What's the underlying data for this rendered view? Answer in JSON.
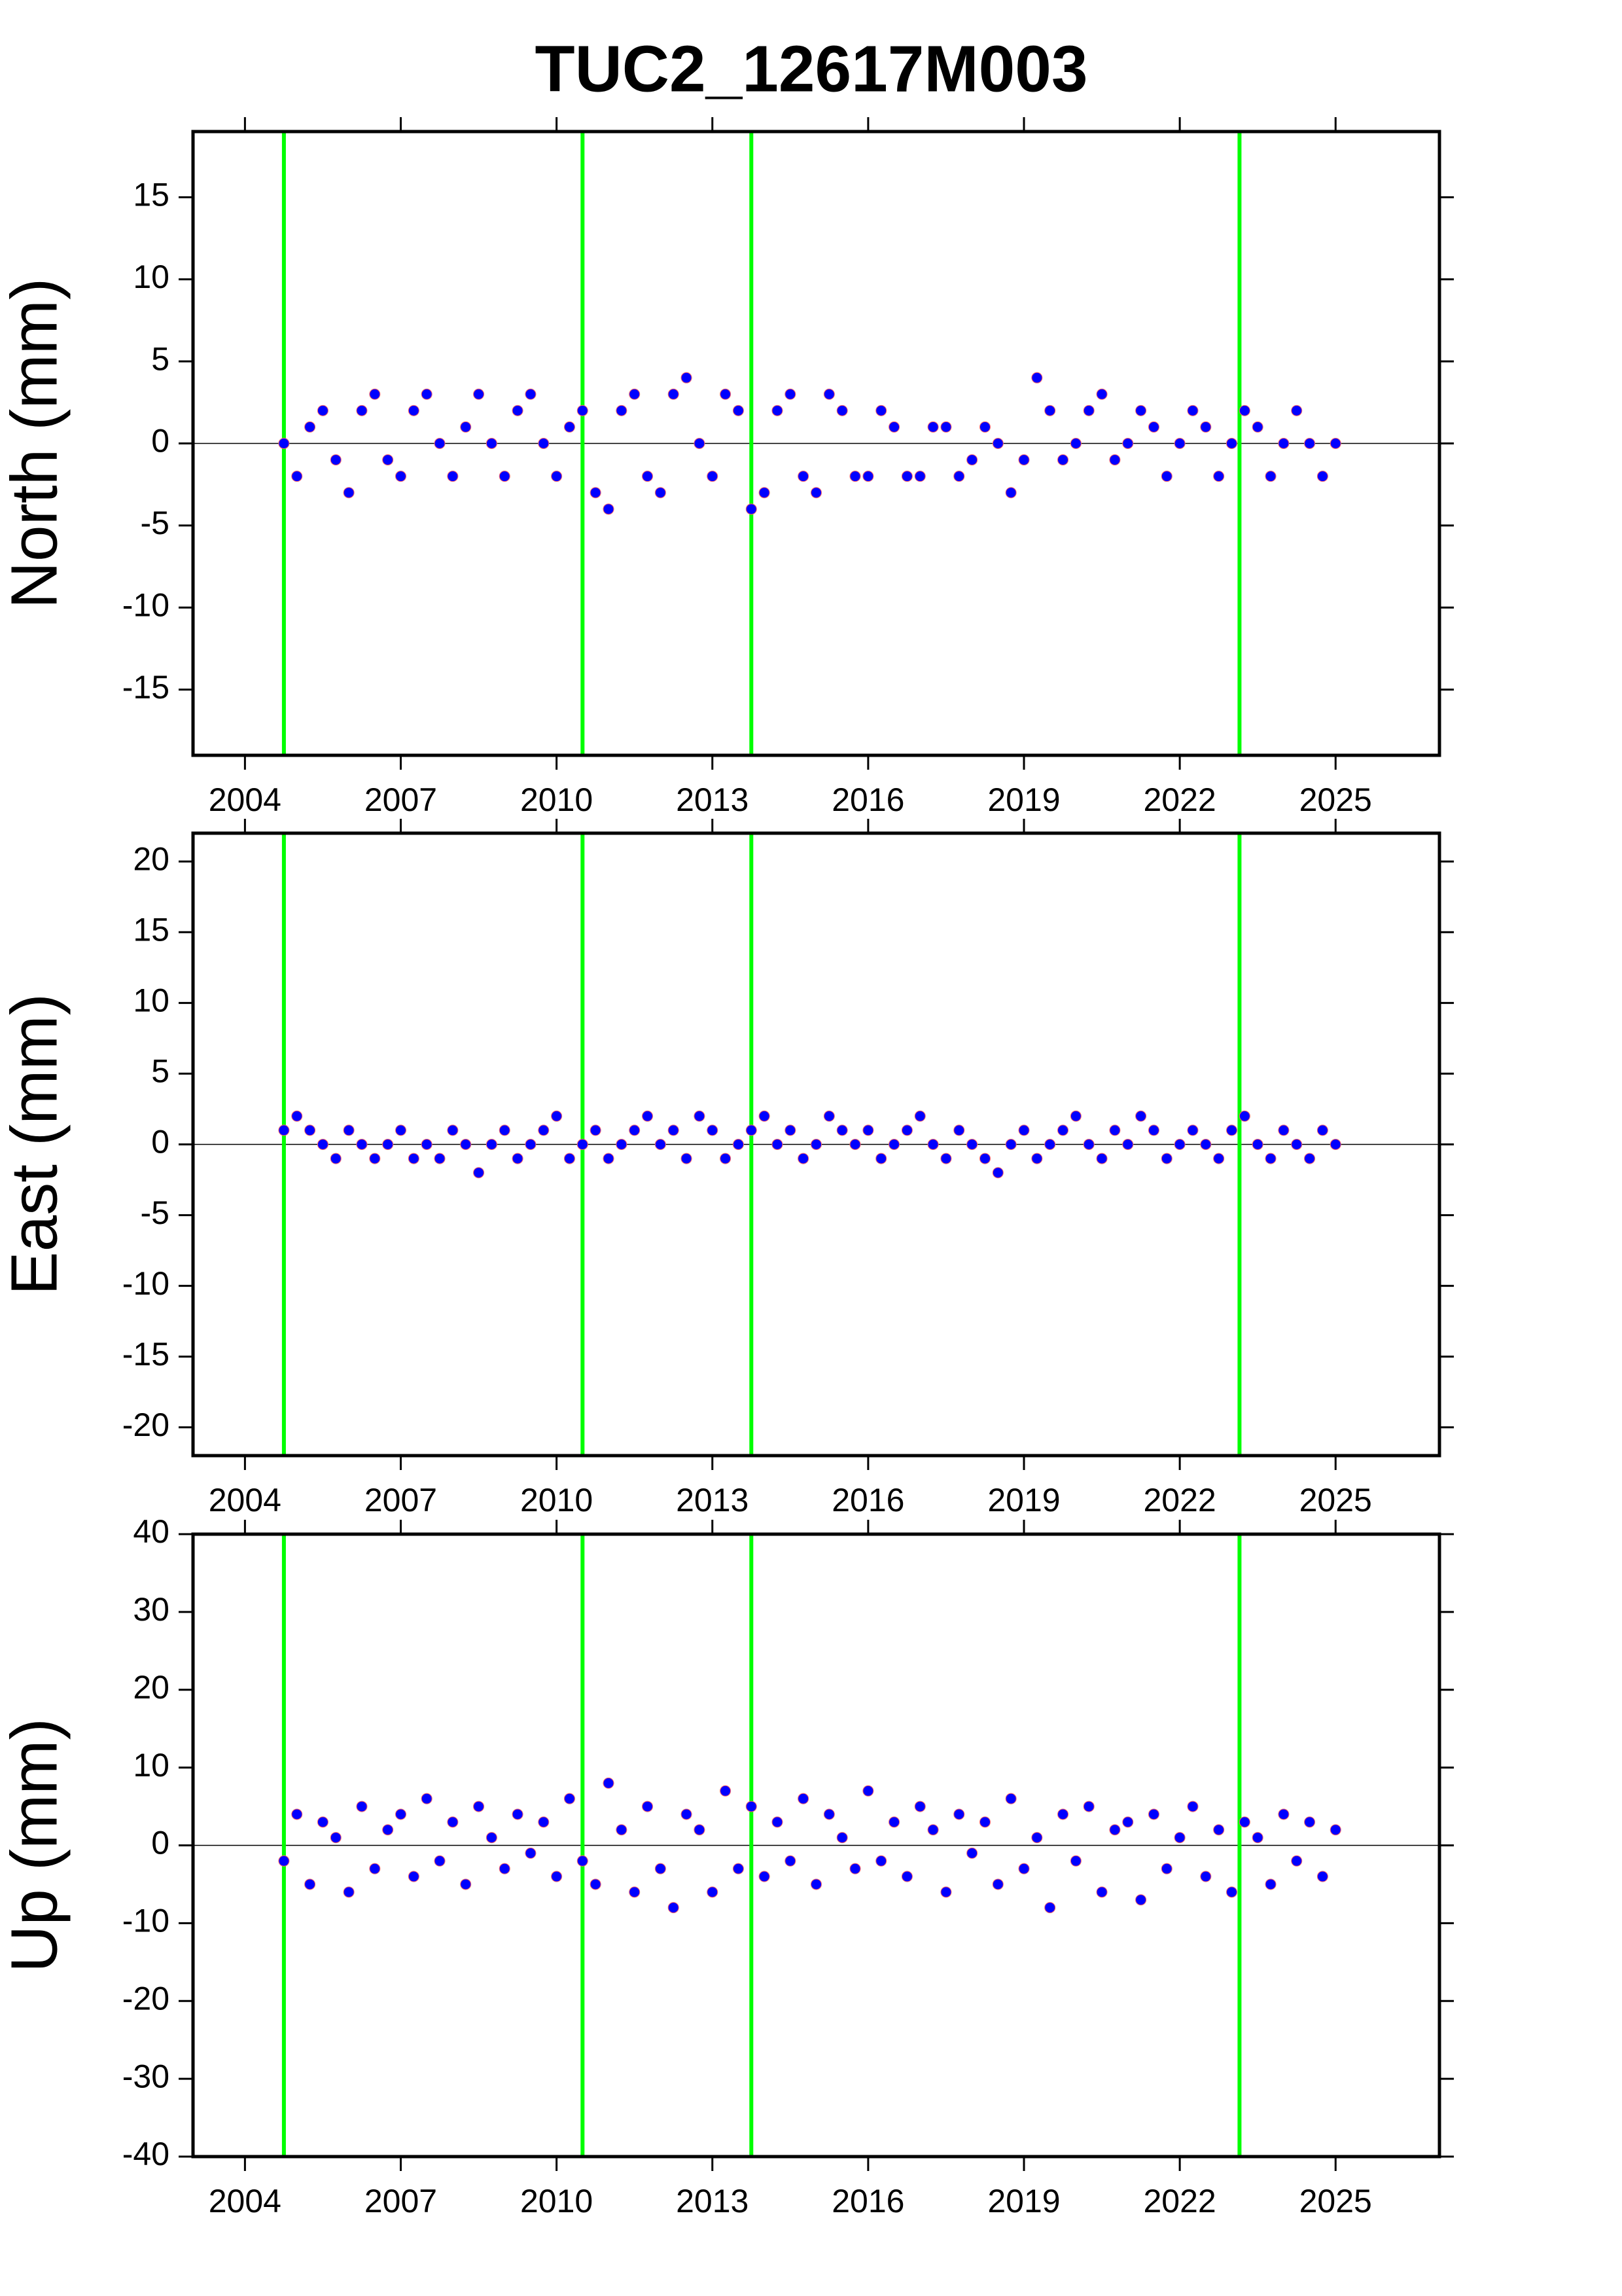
{
  "chart_data": [
    {
      "type": "scatter",
      "title": "TUC2_12617M003",
      "ylabel": "North (mm)",
      "color": "#0000ff",
      "event_lines": [
        2004.75,
        2010.5,
        2013.75,
        2023.15
      ],
      "event_color": "#00ff00",
      "xlim": [
        2003,
        2027
      ],
      "xticks": [
        2004,
        2007,
        2010,
        2013,
        2016,
        2019,
        2022,
        2025
      ],
      "ylim": [
        -19,
        19
      ],
      "yticks": [
        -15,
        -10,
        -5,
        0,
        5,
        10,
        15
      ],
      "x": [
        2004.75,
        2005,
        2005.25,
        2005.5,
        2005.75,
        2006,
        2006.25,
        2006.5,
        2006.75,
        2007,
        2007.25,
        2007.5,
        2007.75,
        2008,
        2008.25,
        2008.5,
        2008.75,
        2009,
        2009.25,
        2009.5,
        2009.75,
        2010,
        2010.25,
        2010.5,
        2010.75,
        2011,
        2011.25,
        2011.5,
        2011.75,
        2012,
        2012.25,
        2012.5,
        2012.75,
        2013,
        2013.25,
        2013.5,
        2013.75,
        2014,
        2014.25,
        2014.5,
        2014.75,
        2015,
        2015.25,
        2015.5,
        2015.75,
        2016,
        2016.25,
        2016.5,
        2016.75,
        2017,
        2017.25,
        2017.5,
        2017.75,
        2018,
        2018.25,
        2018.5,
        2018.75,
        2019,
        2019.25,
        2019.5,
        2019.75,
        2020,
        2020.25,
        2020.5,
        2020.75,
        2021,
        2021.25,
        2021.5,
        2021.75,
        2022,
        2022.25,
        2022.5,
        2022.75,
        2023,
        2023.25,
        2023.5,
        2023.75,
        2024,
        2024.25,
        2024.5,
        2024.75,
        2025
      ],
      "values": [
        0,
        -2,
        1,
        2,
        -1,
        -3,
        2,
        3,
        -1,
        -2,
        2,
        3,
        0,
        -2,
        1,
        3,
        0,
        -2,
        2,
        3,
        0,
        -2,
        1,
        2,
        -3,
        -4,
        2,
        3,
        -2,
        -3,
        3,
        4,
        0,
        -2,
        3,
        2,
        -4,
        -3,
        2,
        3,
        -2,
        -3,
        3,
        2,
        -2,
        -2,
        2,
        1,
        -2,
        -2,
        1,
        1,
        -2,
        -1,
        1,
        0,
        -3,
        -1,
        4,
        2,
        -1,
        0,
        2,
        3,
        -1,
        0,
        2,
        1,
        -2,
        0,
        2,
        1,
        -2,
        0,
        2,
        1,
        -2,
        0,
        2,
        0,
        -2,
        0
      ]
    },
    {
      "type": "scatter",
      "ylabel": "East (mm)",
      "color": "#0000ff",
      "event_lines": [
        2004.75,
        2010.5,
        2013.75,
        2023.15
      ],
      "event_color": "#00ff00",
      "xlim": [
        2003,
        2027
      ],
      "xticks": [
        2004,
        2007,
        2010,
        2013,
        2016,
        2019,
        2022,
        2025
      ],
      "ylim": [
        -22,
        22
      ],
      "yticks": [
        -20,
        -15,
        -10,
        -5,
        0,
        5,
        10,
        15,
        20
      ],
      "x": [
        2004.75,
        2005,
        2005.25,
        2005.5,
        2005.75,
        2006,
        2006.25,
        2006.5,
        2006.75,
        2007,
        2007.25,
        2007.5,
        2007.75,
        2008,
        2008.25,
        2008.5,
        2008.75,
        2009,
        2009.25,
        2009.5,
        2009.75,
        2010,
        2010.25,
        2010.5,
        2010.75,
        2011,
        2011.25,
        2011.5,
        2011.75,
        2012,
        2012.25,
        2012.5,
        2012.75,
        2013,
        2013.25,
        2013.5,
        2013.75,
        2014,
        2014.25,
        2014.5,
        2014.75,
        2015,
        2015.25,
        2015.5,
        2015.75,
        2016,
        2016.25,
        2016.5,
        2016.75,
        2017,
        2017.25,
        2017.5,
        2017.75,
        2018,
        2018.25,
        2018.5,
        2018.75,
        2019,
        2019.25,
        2019.5,
        2019.75,
        2020,
        2020.25,
        2020.5,
        2020.75,
        2021,
        2021.25,
        2021.5,
        2021.75,
        2022,
        2022.25,
        2022.5,
        2022.75,
        2023,
        2023.25,
        2023.5,
        2023.75,
        2024,
        2024.25,
        2024.5,
        2024.75,
        2025
      ],
      "values": [
        1,
        2,
        1,
        0,
        -1,
        1,
        0,
        -1,
        0,
        1,
        -1,
        0,
        -1,
        1,
        0,
        -2,
        0,
        1,
        -1,
        0,
        1,
        2,
        -1,
        0,
        1,
        -1,
        0,
        1,
        2,
        0,
        1,
        -1,
        2,
        1,
        -1,
        0,
        1,
        2,
        0,
        1,
        -1,
        0,
        2,
        1,
        0,
        1,
        -1,
        0,
        1,
        2,
        0,
        -1,
        1,
        0,
        -1,
        -2,
        0,
        1,
        -1,
        0,
        1,
        2,
        0,
        -1,
        1,
        0,
        2,
        1,
        -1,
        0,
        1,
        0,
        -1,
        1,
        2,
        0,
        -1,
        1,
        0,
        -1,
        1,
        0
      ]
    },
    {
      "type": "scatter",
      "ylabel": "Up (mm)",
      "color": "#0000ff",
      "event_lines": [
        2004.75,
        2010.5,
        2013.75,
        2023.15
      ],
      "event_color": "#00ff00",
      "xlim": [
        2003,
        2027
      ],
      "xticks": [
        2004,
        2007,
        2010,
        2013,
        2016,
        2019,
        2022,
        2025
      ],
      "ylim": [
        -40,
        40
      ],
      "yticks": [
        -40,
        -30,
        -20,
        -10,
        0,
        10,
        20,
        30,
        40
      ],
      "x": [
        2004.75,
        2005,
        2005.25,
        2005.5,
        2005.75,
        2006,
        2006.25,
        2006.5,
        2006.75,
        2007,
        2007.25,
        2007.5,
        2007.75,
        2008,
        2008.25,
        2008.5,
        2008.75,
        2009,
        2009.25,
        2009.5,
        2009.75,
        2010,
        2010.25,
        2010.5,
        2010.75,
        2011,
        2011.25,
        2011.5,
        2011.75,
        2012,
        2012.25,
        2012.5,
        2012.75,
        2013,
        2013.25,
        2013.5,
        2013.75,
        2014,
        2014.25,
        2014.5,
        2014.75,
        2015,
        2015.25,
        2015.5,
        2015.75,
        2016,
        2016.25,
        2016.5,
        2016.75,
        2017,
        2017.25,
        2017.5,
        2017.75,
        2018,
        2018.25,
        2018.5,
        2018.75,
        2019,
        2019.25,
        2019.5,
        2019.75,
        2020,
        2020.25,
        2020.5,
        2020.75,
        2021,
        2021.25,
        2021.5,
        2021.75,
        2022,
        2022.25,
        2022.5,
        2022.75,
        2023,
        2023.25,
        2023.5,
        2023.75,
        2024,
        2024.25,
        2024.5,
        2024.75,
        2025
      ],
      "values": [
        -2,
        4,
        -5,
        3,
        1,
        -6,
        5,
        -3,
        2,
        4,
        -4,
        6,
        -2,
        3,
        -5,
        5,
        1,
        -3,
        4,
        -1,
        3,
        -4,
        6,
        -2,
        -5,
        8,
        2,
        -6,
        5,
        -3,
        -8,
        4,
        2,
        -6,
        7,
        -3,
        5,
        -4,
        3,
        -2,
        6,
        -5,
        4,
        1,
        -3,
        7,
        -2,
        3,
        -4,
        5,
        2,
        -6,
        4,
        -1,
        3,
        -5,
        6,
        -3,
        1,
        -8,
        4,
        -2,
        5,
        -6,
        2,
        3,
        -7,
        4,
        -3,
        1,
        5,
        -4,
        2,
        -6,
        3,
        1,
        -5,
        4,
        -2,
        3,
        -4,
        2
      ]
    }
  ]
}
